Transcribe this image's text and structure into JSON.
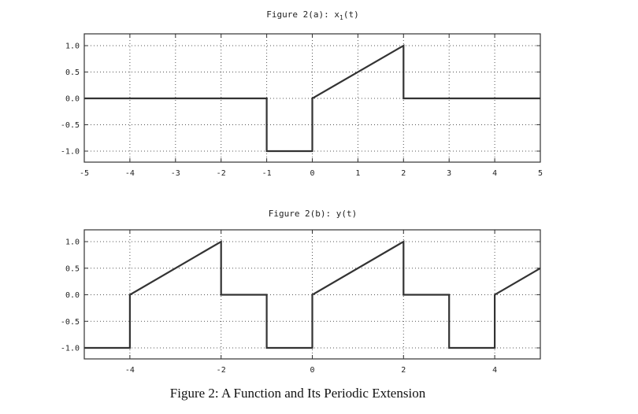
{
  "caption": "Figure 2: A Function and Its Periodic Extension",
  "plots": [
    {
      "title_prefix": "Figure 2(a): x",
      "title_sub": "1",
      "title_suffix": "(t)"
    },
    {
      "title_prefix": "Figure 2(b): y(t)",
      "title_sub": "",
      "title_suffix": ""
    }
  ],
  "colors": {
    "line": "#333333",
    "grid": "#555555",
    "frame": "#333333"
  },
  "chart_data": [
    {
      "type": "line",
      "title": "Figure 2(a): x_1(t)",
      "xlabel": "",
      "ylabel": "",
      "xlim": [
        -5,
        5
      ],
      "ylim": [
        -1.2,
        1.2
      ],
      "xticks": [
        -5,
        -4,
        -3,
        -2,
        -1,
        0,
        1,
        2,
        3,
        4,
        5
      ],
      "xgrid": [
        -4,
        -3,
        -2,
        -1,
        0,
        1,
        2,
        3,
        4
      ],
      "yticks": [
        1.0,
        0.5,
        0.0,
        -0.5,
        -1.0
      ],
      "ytick_labels": [
        "1.0",
        "0.5",
        "0.0",
        "-0.5",
        "-1.0"
      ],
      "grid": true,
      "series": [
        {
          "name": "x1(t)",
          "x": [
            -5,
            -1,
            -1,
            0,
            0,
            2,
            2,
            5
          ],
          "y": [
            0,
            0,
            -1,
            -1,
            0,
            1,
            0,
            0
          ]
        }
      ]
    },
    {
      "type": "line",
      "title": "Figure 2(b): y(t)",
      "xlabel": "",
      "ylabel": "",
      "xlim": [
        -5,
        5
      ],
      "ylim": [
        -1.2,
        1.2
      ],
      "xticks": [
        -4,
        -2,
        0,
        2,
        4
      ],
      "xgrid": [
        -4,
        -2,
        0,
        2,
        4
      ],
      "yticks": [
        1.0,
        0.5,
        0.0,
        -0.5,
        -1.0
      ],
      "ytick_labels": [
        "1.0",
        "0.5",
        "0.0",
        "-0.5",
        "-1.0"
      ],
      "grid": true,
      "series": [
        {
          "name": "y(t)",
          "x": [
            -5,
            -4,
            -4,
            -2,
            -2,
            -1,
            -1,
            0,
            0,
            2,
            2,
            3,
            3,
            4,
            4,
            5
          ],
          "y": [
            -1,
            -1,
            0,
            1,
            0,
            0,
            -1,
            -1,
            0,
            1,
            0,
            0,
            -1,
            -1,
            0,
            0.5
          ]
        }
      ]
    }
  ]
}
